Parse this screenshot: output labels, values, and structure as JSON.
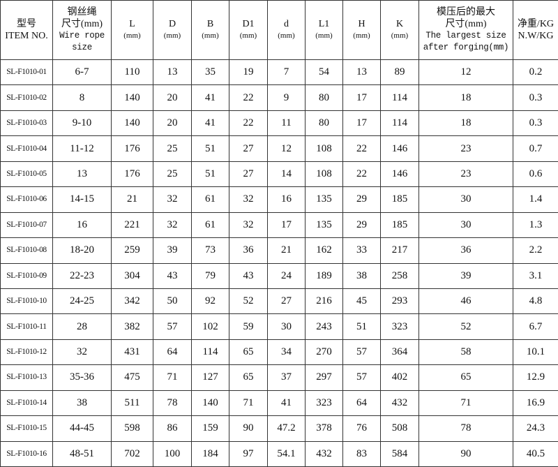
{
  "header": {
    "item": {
      "cn": "型号",
      "en": "ITEM NO."
    },
    "rope": {
      "cn1": "钢丝绳",
      "cn2": "尺寸(mm)",
      "en1": "Wire rope",
      "en2": "size"
    },
    "dims": [
      {
        "label": "L",
        "unit": "(mm)"
      },
      {
        "label": "D",
        "unit": "(mm)"
      },
      {
        "label": "B",
        "unit": "(mm)"
      },
      {
        "label": "D1",
        "unit": "(mm)"
      },
      {
        "label": "d",
        "unit": "(mm)"
      },
      {
        "label": "L1",
        "unit": "(mm)"
      },
      {
        "label": "H",
        "unit": "(mm)"
      },
      {
        "label": "K",
        "unit": "(mm)"
      }
    ],
    "forging": {
      "cn1": "模压后的最大",
      "cn2": "尺寸(mm)",
      "en1": "The largest size",
      "en2": "after forging(mm)"
    },
    "weight": {
      "cn": "净重/KG",
      "en": "N.W/KG"
    }
  },
  "rows": [
    [
      "SL-F1010-01",
      "6-7",
      "110",
      "13",
      "35",
      "19",
      "7",
      "54",
      "13",
      "89",
      "12",
      "0.2"
    ],
    [
      "SL-F1010-02",
      "8",
      "140",
      "20",
      "41",
      "22",
      "9",
      "80",
      "17",
      "114",
      "18",
      "0.3"
    ],
    [
      "SL-F1010-03",
      "9-10",
      "140",
      "20",
      "41",
      "22",
      "11",
      "80",
      "17",
      "114",
      "18",
      "0.3"
    ],
    [
      "SL-F1010-04",
      "11-12",
      "176",
      "25",
      "51",
      "27",
      "12",
      "108",
      "22",
      "146",
      "23",
      "0.7"
    ],
    [
      "SL-F1010-05",
      "13",
      "176",
      "25",
      "51",
      "27",
      "14",
      "108",
      "22",
      "146",
      "23",
      "0.6"
    ],
    [
      "SL-F1010-06",
      "14-15",
      "21",
      "32",
      "61",
      "32",
      "16",
      "135",
      "29",
      "185",
      "30",
      "1.4"
    ],
    [
      "SL-F1010-07",
      "16",
      "221",
      "32",
      "61",
      "32",
      "17",
      "135",
      "29",
      "185",
      "30",
      "1.3"
    ],
    [
      "SL-F1010-08",
      "18-20",
      "259",
      "39",
      "73",
      "36",
      "21",
      "162",
      "33",
      "217",
      "36",
      "2.2"
    ],
    [
      "SL-F1010-09",
      "22-23",
      "304",
      "43",
      "79",
      "43",
      "24",
      "189",
      "38",
      "258",
      "39",
      "3.1"
    ],
    [
      "SL-F1010-10",
      "24-25",
      "342",
      "50",
      "92",
      "52",
      "27",
      "216",
      "45",
      "293",
      "46",
      "4.8"
    ],
    [
      "SL-F1010-11",
      "28",
      "382",
      "57",
      "102",
      "59",
      "30",
      "243",
      "51",
      "323",
      "52",
      "6.7"
    ],
    [
      "SL-F1010-12",
      "32",
      "431",
      "64",
      "114",
      "65",
      "34",
      "270",
      "57",
      "364",
      "58",
      "10.1"
    ],
    [
      "SL-F1010-13",
      "35-36",
      "475",
      "71",
      "127",
      "65",
      "37",
      "297",
      "57",
      "402",
      "65",
      "12.9"
    ],
    [
      "SL-F1010-14",
      "38",
      "511",
      "78",
      "140",
      "71",
      "41",
      "323",
      "64",
      "432",
      "71",
      "16.9"
    ],
    [
      "SL-F1010-15",
      "44-45",
      "598",
      "86",
      "159",
      "90",
      "47.2",
      "378",
      "76",
      "508",
      "78",
      "24.3"
    ],
    [
      "SL-F1010-16",
      "48-51",
      "702",
      "100",
      "184",
      "97",
      "54.1",
      "432",
      "83",
      "584",
      "90",
      "40.5"
    ]
  ]
}
